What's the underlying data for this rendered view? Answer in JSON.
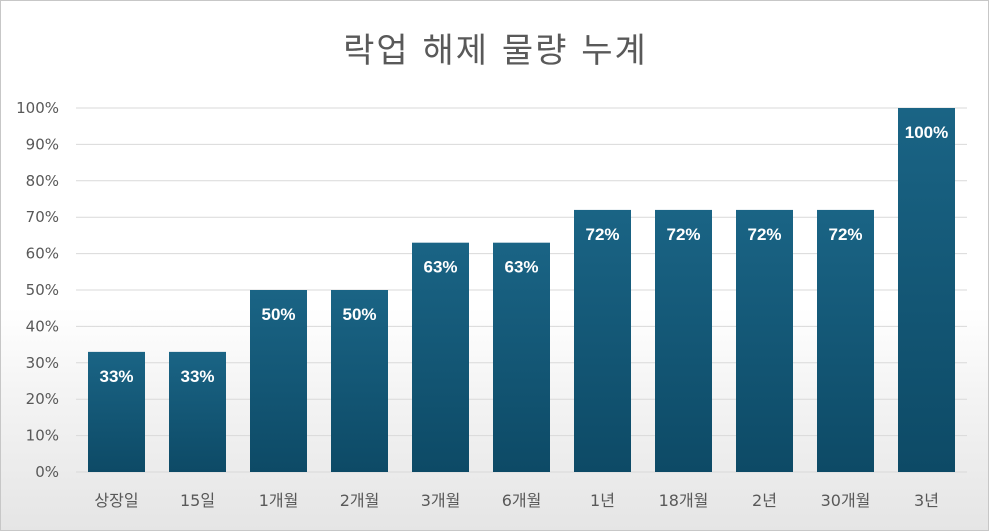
{
  "chart_data": {
    "type": "bar",
    "title": "락업 해제 물량 누계",
    "xlabel": "",
    "ylabel": "",
    "categories": [
      "상장일",
      "15일",
      "1개월",
      "2개월",
      "3개월",
      "6개월",
      "1년",
      "18개월",
      "2년",
      "30개월",
      "3년"
    ],
    "values": [
      33,
      33,
      50,
      50,
      63,
      63,
      72,
      72,
      72,
      72,
      100
    ],
    "data_labels": [
      "33%",
      "33%",
      "50%",
      "50%",
      "63%",
      "63%",
      "72%",
      "72%",
      "72%",
      "72%",
      "100%"
    ],
    "ylim": [
      0,
      100
    ],
    "yticks": [
      "0%",
      "10%",
      "20%",
      "30%",
      "40%",
      "50%",
      "60%",
      "70%",
      "80%",
      "90%",
      "100%"
    ],
    "grid": true,
    "legend": "none",
    "colors": {
      "bar_top": "#1a6485",
      "bar_bottom": "#0d4a66",
      "grid": "#d9d9d9",
      "text": "#595959",
      "data_label": "#ffffff"
    }
  }
}
